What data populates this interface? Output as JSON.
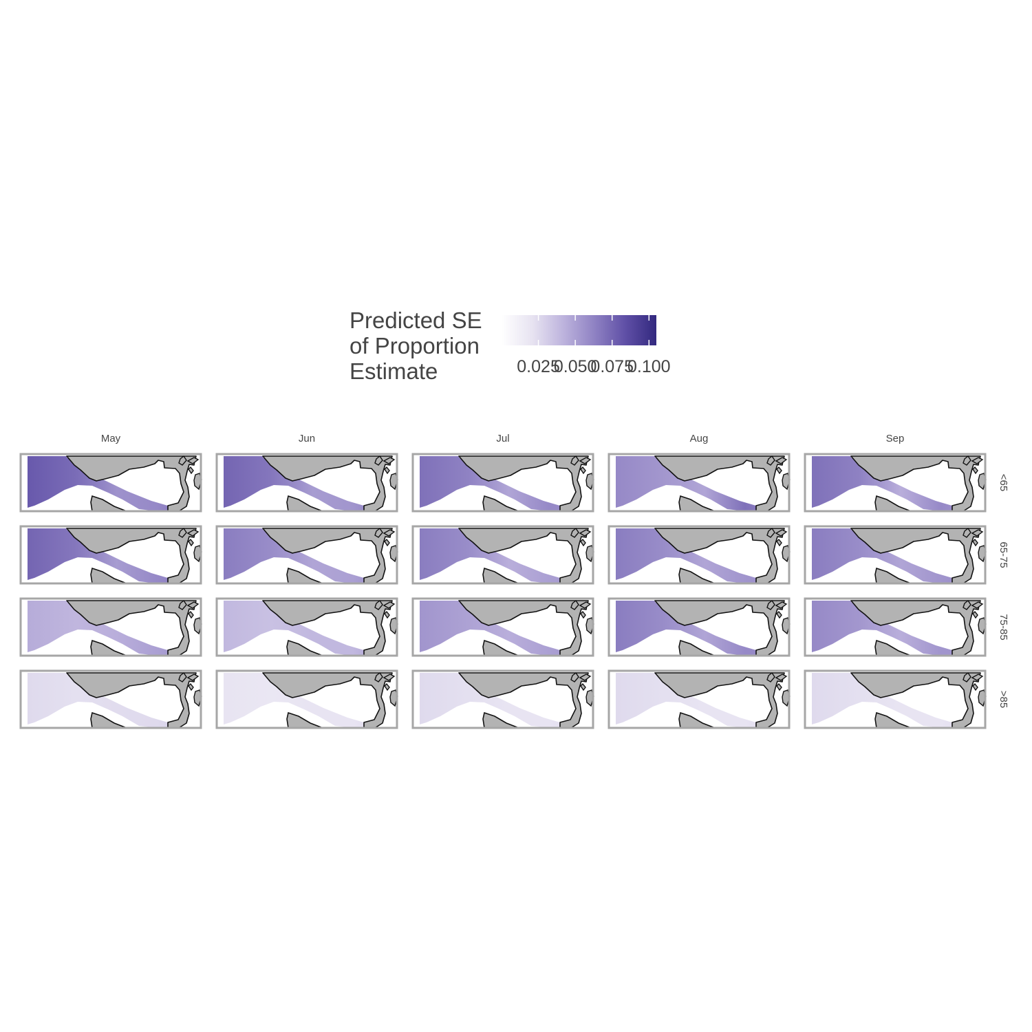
{
  "legend": {
    "title_lines": [
      "Predicted SE",
      "of Proportion",
      "Estimate"
    ],
    "ticks": [
      "0.025",
      "0.050",
      "0.075",
      "0.100"
    ],
    "tick_values": [
      0.025,
      0.05,
      0.075,
      0.1
    ],
    "range": [
      0.0,
      0.105
    ],
    "colors": [
      "#ffffff",
      "#e7e3f1",
      "#bdb3dd",
      "#8f82c3",
      "#5f4fa6",
      "#33297f"
    ]
  },
  "columns": [
    "May",
    "Jun",
    "Jul",
    "Aug",
    "Sep"
  ],
  "rows": [
    "<65",
    "65-75",
    "75-85",
    ">85"
  ],
  "chart_data": {
    "type": "heatmap",
    "xlabel": "",
    "ylabel": "",
    "column_facets": [
      "May",
      "Jun",
      "Jul",
      "Aug",
      "Sep"
    ],
    "row_facets": [
      "<65",
      "65-75",
      "75-85",
      ">85"
    ],
    "series": [
      {
        "name": "<65",
        "values": [
          {
            "offshore": 0.08,
            "coastal": 0.07,
            "south": 0.06
          },
          {
            "offshore": 0.075,
            "coastal": 0.065,
            "south": 0.055
          },
          {
            "offshore": 0.07,
            "coastal": 0.06,
            "south": 0.06
          },
          {
            "offshore": 0.06,
            "coastal": 0.06,
            "south": 0.07
          },
          {
            "offshore": 0.07,
            "coastal": 0.055,
            "south": 0.06
          }
        ]
      },
      {
        "name": "65-75",
        "values": [
          {
            "offshore": 0.075,
            "coastal": 0.065,
            "south": 0.06
          },
          {
            "offshore": 0.065,
            "coastal": 0.06,
            "south": 0.05
          },
          {
            "offshore": 0.065,
            "coastal": 0.055,
            "south": 0.05
          },
          {
            "offshore": 0.065,
            "coastal": 0.06,
            "south": 0.055
          },
          {
            "offshore": 0.065,
            "coastal": 0.06,
            "south": 0.055
          }
        ]
      },
      {
        "name": "75-85",
        "values": [
          {
            "offshore": 0.045,
            "coastal": 0.055,
            "south": 0.05
          },
          {
            "offshore": 0.04,
            "coastal": 0.05,
            "south": 0.04
          },
          {
            "offshore": 0.055,
            "coastal": 0.055,
            "south": 0.05
          },
          {
            "offshore": 0.065,
            "coastal": 0.06,
            "south": 0.06
          },
          {
            "offshore": 0.06,
            "coastal": 0.055,
            "south": 0.055
          }
        ]
      },
      {
        "name": ">85",
        "values": [
          {
            "offshore": 0.025,
            "coastal": 0.03,
            "south": 0.025
          },
          {
            "offshore": 0.02,
            "coastal": 0.025,
            "south": 0.02
          },
          {
            "offshore": 0.025,
            "coastal": 0.025,
            "south": 0.02
          },
          {
            "offshore": 0.025,
            "coastal": 0.025,
            "south": 0.02
          },
          {
            "offshore": 0.025,
            "coastal": 0.025,
            "south": 0.02
          }
        ]
      }
    ],
    "colorbar": {
      "min": 0.0,
      "max": 0.105,
      "ticks": [
        0.025,
        0.05,
        0.075,
        0.1
      ]
    }
  }
}
